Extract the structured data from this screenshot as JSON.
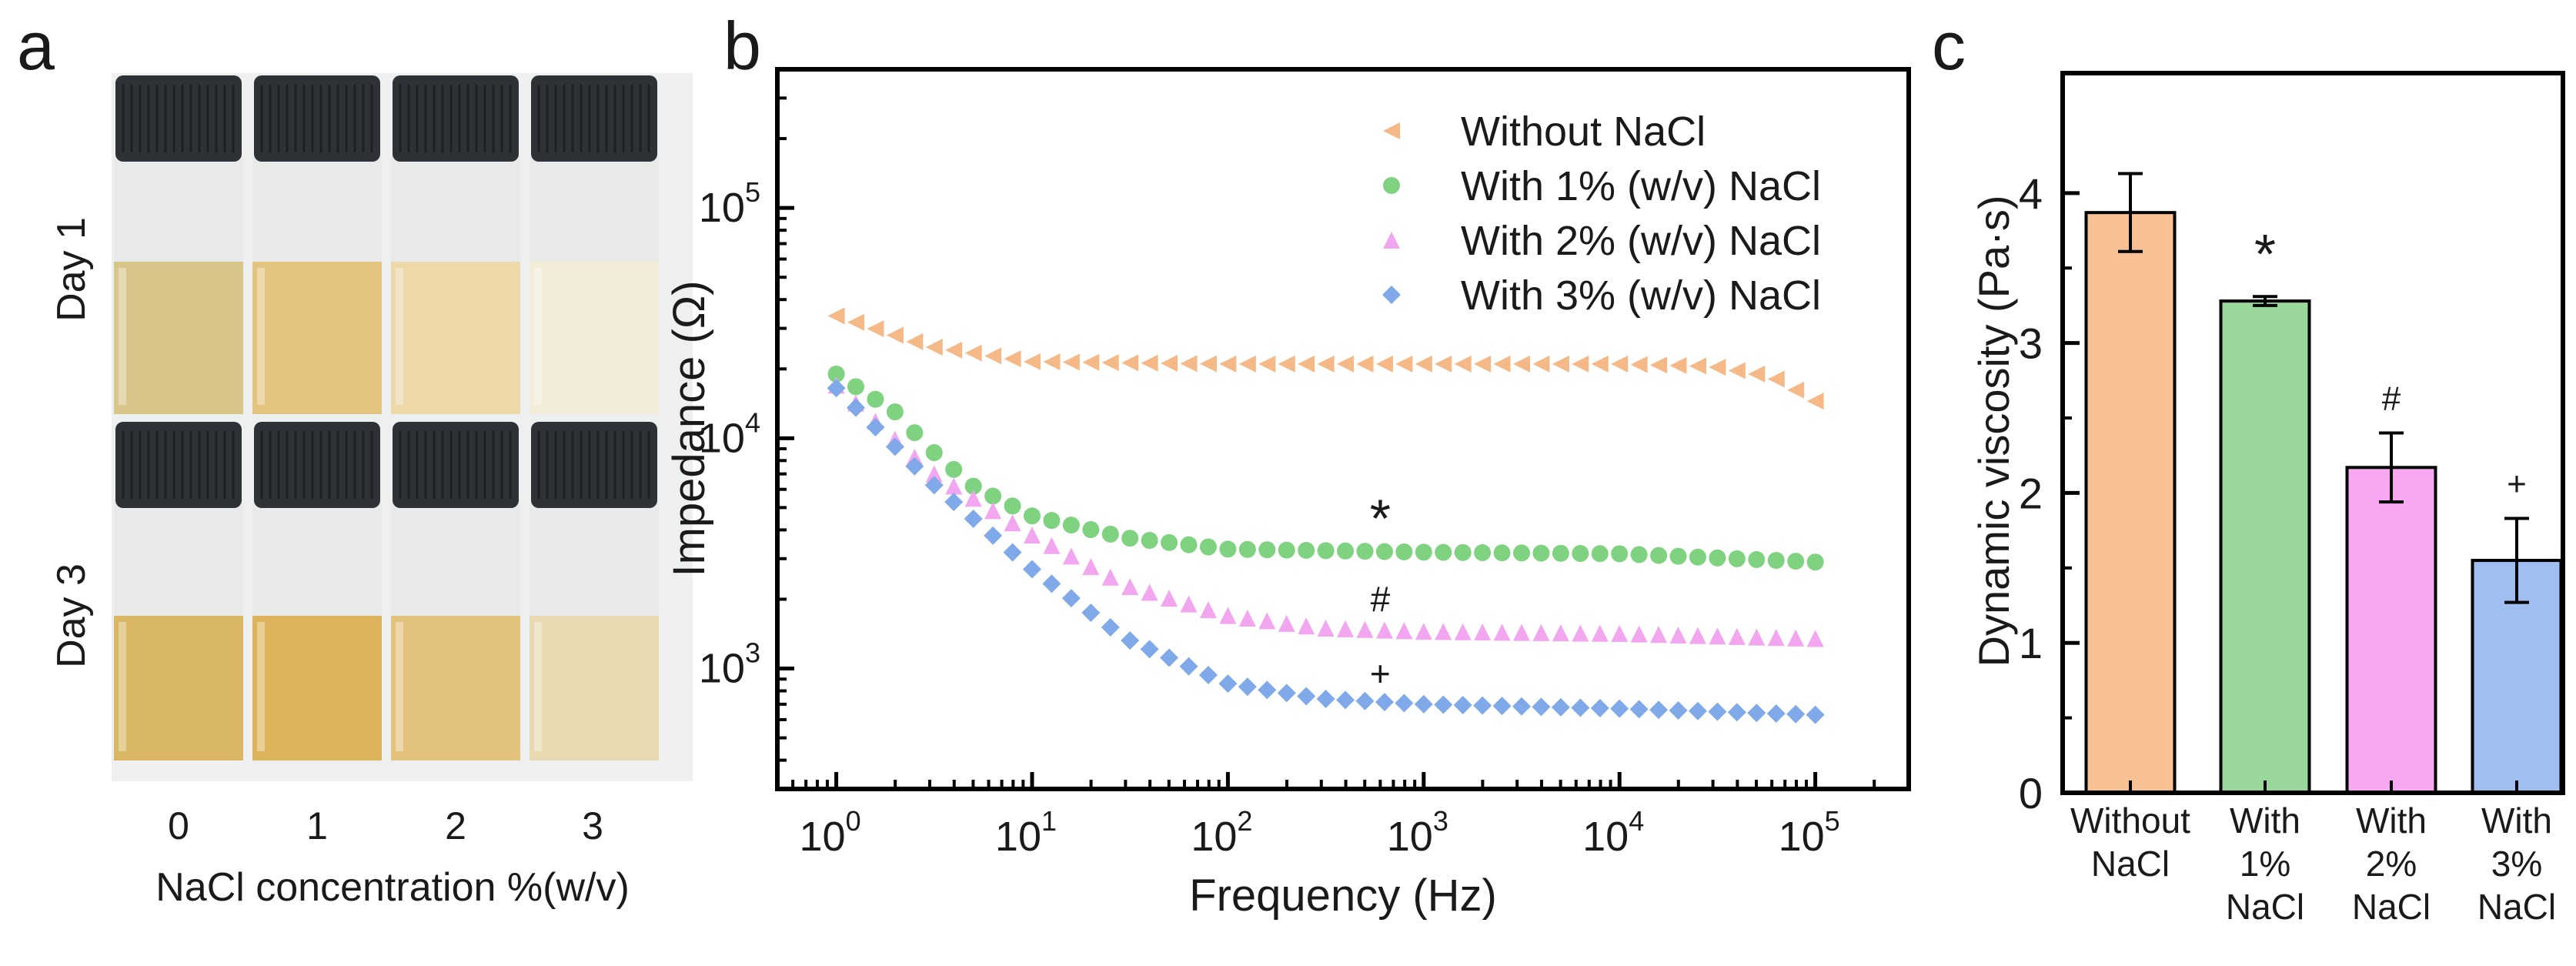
{
  "panel_a": {
    "letter": "a",
    "rows": [
      {
        "label": "Day 1"
      },
      {
        "label": "Day 3"
      }
    ],
    "concentrations": [
      "0",
      "1",
      "2",
      "3"
    ],
    "xlabel": "NaCl concentration %(w/v)",
    "colors": {
      "day1": [
        "#d8c58a",
        "#e3c47e",
        "#ecd8a9",
        "#f2ecd8"
      ],
      "day3": [
        "#d8b664",
        "#ddb45c",
        "#e3c27e",
        "#e9d9b0"
      ],
      "cap": "#2e3236",
      "headspace": "#e8eaea"
    }
  },
  "chart_data": [
    {
      "panel": "b",
      "type": "scatter",
      "xlabel": "Frequency (Hz)",
      "ylabel": "Impedance (Ω)",
      "x_scale": "log",
      "y_scale": "log",
      "xlim": [
        0.5,
        300000
      ],
      "ylim": [
        300,
        400000
      ],
      "x_ticks": [
        {
          "v": 1,
          "e": "0"
        },
        {
          "v": 10,
          "e": "1"
        },
        {
          "v": 100,
          "e": "2"
        },
        {
          "v": 1000,
          "e": "3"
        },
        {
          "v": 10000,
          "e": "4"
        },
        {
          "v": 100000,
          "e": "5"
        }
      ],
      "y_ticks": [
        {
          "v": 1000,
          "e": "3"
        },
        {
          "v": 10000,
          "e": "4"
        },
        {
          "v": 100000,
          "e": "5"
        }
      ],
      "tick_base": "10",
      "legend_position": "top-right",
      "grid": false,
      "series": [
        {
          "name": "Without NaCl",
          "marker": "triangle-left",
          "color": "#f5b887",
          "points": [
            [
              1,
              34000
            ],
            [
              3,
              25000
            ],
            [
              10,
              21500
            ],
            [
              100,
              21000
            ],
            [
              1000,
              21000
            ],
            [
              10000,
              21000
            ],
            [
              30000,
              20500
            ],
            [
              60000,
              18500
            ],
            [
              100000,
              14500
            ]
          ]
        },
        {
          "name": "With 1% (w/v) NaCl",
          "marker": "circle",
          "color": "#7fd27f",
          "points": [
            [
              1,
              19000
            ],
            [
              2,
              13000
            ],
            [
              3,
              9000
            ],
            [
              5,
              6200
            ],
            [
              10,
              4600
            ],
            [
              30,
              3700
            ],
            [
              100,
              3300
            ],
            [
              1000,
              3200
            ],
            [
              10000,
              3150
            ],
            [
              100000,
              2900
            ]
          ]
        },
        {
          "name": "With 2% (w/v) NaCl",
          "marker": "triangle-up",
          "color": "#f2a6ef",
          "points": [
            [
              1,
              17000
            ],
            [
              3,
              7200
            ],
            [
              10,
              3800
            ],
            [
              30,
              2300
            ],
            [
              100,
              1700
            ],
            [
              300,
              1500
            ],
            [
              1000,
              1450
            ],
            [
              10000,
              1420
            ],
            [
              100000,
              1350
            ]
          ]
        },
        {
          "name": "With 3% (w/v) NaCl",
          "marker": "diamond",
          "color": "#7fa9e8",
          "points": [
            [
              1,
              16500
            ],
            [
              3,
              6500
            ],
            [
              10,
              2700
            ],
            [
              30,
              1350
            ],
            [
              100,
              860
            ],
            [
              300,
              740
            ],
            [
              1000,
              700
            ],
            [
              10000,
              670
            ],
            [
              100000,
              630
            ]
          ]
        }
      ],
      "annotations": [
        {
          "text": "*",
          "x": 600,
          "y": 4700
        },
        {
          "text": "#",
          "x": 600,
          "y": 2000
        },
        {
          "text": "+",
          "x": 600,
          "y": 950
        }
      ]
    },
    {
      "panel": "c",
      "type": "bar",
      "ylabel": "Dynamic viscosity (Pa·s)",
      "ylim": [
        0,
        4.8
      ],
      "y_ticks": [
        0,
        1,
        2,
        3,
        4
      ],
      "categories": [
        [
          "Without",
          "NaCl"
        ],
        [
          "With",
          "1%",
          "NaCl"
        ],
        [
          "With",
          "2%",
          "NaCl"
        ],
        [
          "With",
          "3%",
          "NaCl"
        ]
      ],
      "values": [
        3.87,
        3.28,
        2.17,
        1.55
      ],
      "errors": [
        0.26,
        0.03,
        0.23,
        0.28
      ],
      "colors": [
        "#f8c193",
        "#9ad79a",
        "#f8a8f2",
        "#a1bef0"
      ],
      "annotations": [
        "",
        "*",
        "#",
        "+"
      ]
    }
  ]
}
